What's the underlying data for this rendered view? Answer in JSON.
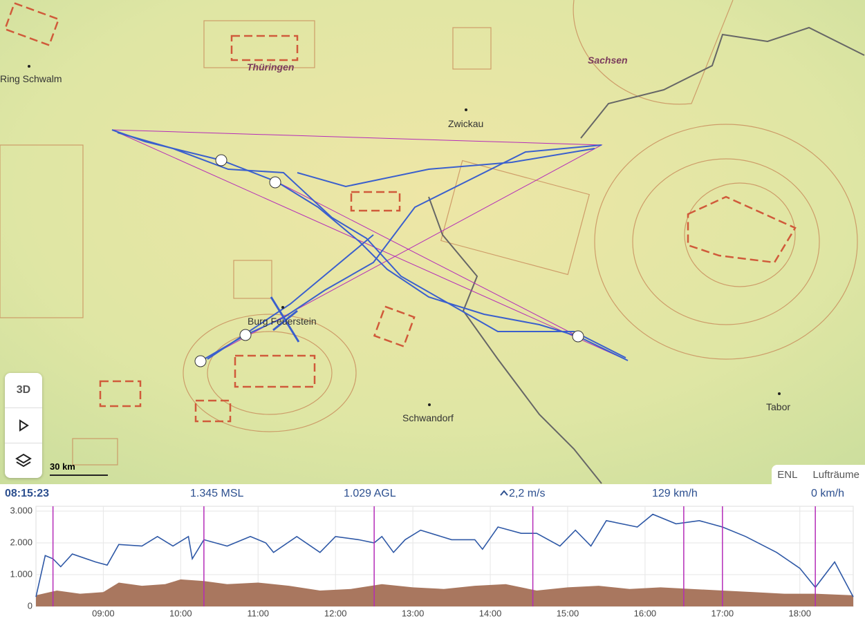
{
  "map": {
    "places": [
      "Ring Schwalm",
      "Zwickau",
      "Burg Feuerstein",
      "Schwandorf",
      "Tabor"
    ],
    "regions": [
      "Thüringen",
      "Sachsen"
    ],
    "scale": "30 km",
    "view_button": "3D"
  },
  "tabs": [
    "ENL",
    "Lufträume"
  ],
  "status": {
    "time": "08:15:23",
    "altitude": "1.345 MSL",
    "height": "1.029 AGL",
    "vario": "2,2 m/s",
    "speed": "129 km/h",
    "wind": "0 km/h"
  },
  "barogram": {
    "type": "line",
    "xlim": [
      8.13,
      18.69
    ],
    "ylim": [
      0,
      3000
    ],
    "yticks": [
      0,
      {
        "value": 1000,
        "label": "1.000"
      },
      {
        "value": 2000,
        "label": "2.000"
      },
      {
        "value": 3000,
        "label": "3.000"
      }
    ],
    "xticks": [
      {
        "value": 9,
        "label": "09:00"
      },
      {
        "value": 10,
        "label": "10:00"
      },
      {
        "value": 11,
        "label": "11:00"
      },
      {
        "value": 12,
        "label": "12:00"
      },
      {
        "value": 13,
        "label": "13:00"
      },
      {
        "value": 14,
        "label": "14:00"
      },
      {
        "value": 15,
        "label": "15:00"
      },
      {
        "value": 16,
        "label": "16:00"
      },
      {
        "value": 17,
        "label": "17:00"
      },
      {
        "value": 18,
        "label": "18:00"
      }
    ],
    "series": [
      {
        "type": "area",
        "color": "#a9775f",
        "x": [
          8.13,
          8.4,
          8.7,
          9.0,
          9.2,
          9.5,
          9.8,
          10.0,
          10.3,
          10.6,
          11.0,
          11.4,
          11.8,
          12.2,
          12.6,
          13.0,
          13.4,
          13.8,
          14.2,
          14.6,
          15.0,
          15.4,
          15.8,
          16.2,
          16.6,
          17.0,
          17.4,
          17.8,
          18.2,
          18.69
        ],
        "values": [
          350,
          500,
          400,
          450,
          750,
          650,
          700,
          850,
          800,
          700,
          750,
          650,
          500,
          550,
          700,
          600,
          550,
          650,
          700,
          500,
          600,
          650,
          550,
          600,
          550,
          500,
          450,
          400,
          400,
          350
        ]
      },
      {
        "type": "line",
        "color": "#2e58a6",
        "x": [
          8.13,
          8.25,
          8.35,
          8.45,
          8.6,
          8.9,
          9.05,
          9.2,
          9.5,
          9.7,
          9.9,
          10.1,
          10.15,
          10.3,
          10.6,
          10.9,
          11.1,
          11.2,
          11.5,
          11.8,
          12.0,
          12.3,
          12.5,
          12.6,
          12.75,
          12.9,
          13.1,
          13.5,
          13.8,
          13.9,
          14.1,
          14.4,
          14.6,
          14.9,
          15.1,
          15.3,
          15.5,
          15.9,
          16.1,
          16.4,
          16.7,
          17.0,
          17.3,
          17.7,
          18.0,
          18.2,
          18.45,
          18.69
        ],
        "values": [
          300,
          1600,
          1500,
          1250,
          1650,
          1400,
          1300,
          1950,
          1900,
          2200,
          1900,
          2200,
          1500,
          2100,
          1900,
          2200,
          2000,
          1700,
          2200,
          1700,
          2200,
          2100,
          2000,
          2200,
          1700,
          2100,
          2400,
          2100,
          2100,
          1800,
          2500,
          2300,
          2300,
          1900,
          2400,
          1900,
          2700,
          2500,
          2900,
          2600,
          2700,
          2500,
          2200,
          1700,
          1200,
          600,
          1400,
          300
        ]
      }
    ],
    "markers": {
      "color": "#b42bb8",
      "x": [
        8.35,
        10.3,
        12.5,
        14.55,
        16.5,
        17.0,
        18.2
      ]
    }
  }
}
